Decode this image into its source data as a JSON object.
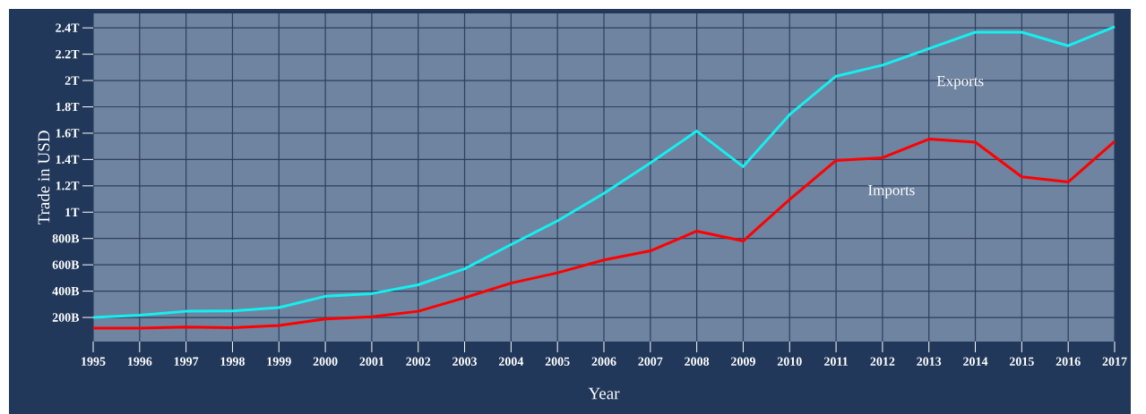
{
  "chart_data": {
    "type": "line",
    "xlabel": "Year",
    "ylabel": "Trade in USD",
    "x": [
      1995,
      1996,
      1997,
      1998,
      1999,
      2000,
      2001,
      2002,
      2003,
      2004,
      2005,
      2006,
      2007,
      2008,
      2009,
      2010,
      2011,
      2012,
      2013,
      2014,
      2015,
      2016,
      2017
    ],
    "series": [
      {
        "name": "Exports",
        "color": "#14f0f0",
        "values": [
          200000000000.0,
          217000000000.0,
          247000000000.0,
          250000000000.0,
          275000000000.0,
          361000000000.0,
          381000000000.0,
          448000000000.0,
          570000000000.0,
          754000000000.0,
          934000000000.0,
          1143000000000.0,
          1374000000000.0,
          1616000000000.0,
          1346000000000.0,
          1741000000000.0,
          2033000000000.0,
          2117000000000.0,
          2242000000000.0,
          2367000000000.0,
          2367000000000.0,
          2264000000000.0,
          2409000000000.0
        ]
      },
      {
        "name": "Imports",
        "color": "#ff0000",
        "values": [
          119000000000.0,
          119000000000.0,
          128000000000.0,
          122000000000.0,
          139000000000.0,
          189000000000.0,
          206000000000.0,
          247000000000.0,
          350000000000.0,
          461000000000.0,
          539000000000.0,
          637000000000.0,
          706000000000.0,
          856000000000.0,
          781000000000.0,
          1096000000000.0,
          1393000000000.0,
          1413000000000.0,
          1555000000000.0,
          1532000000000.0,
          1268000000000.0,
          1229000000000.0,
          1538000000000.0
        ]
      }
    ],
    "xlim": [
      1995,
      2017
    ],
    "ylim": [
      17000000000.0,
      2510000000000.0
    ],
    "xticks": [
      1995,
      1996,
      1997,
      1998,
      1999,
      2000,
      2001,
      2002,
      2003,
      2004,
      2005,
      2006,
      2007,
      2008,
      2009,
      2010,
      2011,
      2012,
      2013,
      2014,
      2015,
      2016,
      2017
    ],
    "yticks": [
      {
        "value": 200000000000.0,
        "label": "200B"
      },
      {
        "value": 400000000000.0,
        "label": "400B"
      },
      {
        "value": 600000000000.0,
        "label": "600B"
      },
      {
        "value": 800000000000.0,
        "label": "800B"
      },
      {
        "value": 1000000000000.0,
        "label": "1T"
      },
      {
        "value": 1200000000000.0,
        "label": "1.2T"
      },
      {
        "value": 1400000000000.0,
        "label": "1.4T"
      },
      {
        "value": 1600000000000.0,
        "label": "1.6T"
      },
      {
        "value": 1800000000000.0,
        "label": "1.8T"
      },
      {
        "value": 2000000000000.0,
        "label": "2T"
      },
      {
        "value": 2200000000000.0,
        "label": "2.2T"
      },
      {
        "value": 2400000000000.0,
        "label": "2.4T"
      }
    ],
    "grid": true,
    "marker": "none",
    "line_style": "solid"
  }
}
